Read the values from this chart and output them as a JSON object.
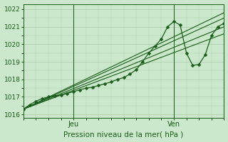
{
  "title": "Pression niveau de la mer( hPa )",
  "bg_color": "#cce8cc",
  "grid_color": "#aaccaa",
  "line_color": "#1a5c1a",
  "ylim": [
    1015.8,
    1022.3
  ],
  "yticks": [
    1016,
    1017,
    1018,
    1019,
    1020,
    1021,
    1022
  ],
  "xlim": [
    0,
    48
  ],
  "xtick_jeu": 12,
  "xtick_ven": 36,
  "straight_lines": [
    {
      "x": [
        0,
        48
      ],
      "y": [
        1016.3,
        1021.0
      ]
    },
    {
      "x": [
        0,
        48
      ],
      "y": [
        1016.3,
        1020.6
      ]
    },
    {
      "x": [
        0,
        48
      ],
      "y": [
        1016.3,
        1021.5
      ]
    },
    {
      "x": [
        0,
        48
      ],
      "y": [
        1016.3,
        1021.8
      ]
    }
  ],
  "wiggly": {
    "x": [
      0,
      1.5,
      3,
      4.5,
      6,
      7.5,
      9,
      10.5,
      12,
      13.5,
      15,
      16.5,
      18,
      19.5,
      21,
      22.5,
      24,
      25.5,
      27,
      28.5,
      30,
      31.5,
      33,
      34.5,
      36,
      37.5,
      39,
      40.5,
      42,
      43.5,
      45,
      46.5,
      48
    ],
    "y": [
      1016.3,
      1016.55,
      1016.75,
      1016.9,
      1017.0,
      1017.05,
      1017.1,
      1017.2,
      1017.3,
      1017.4,
      1017.5,
      1017.55,
      1017.65,
      1017.75,
      1017.85,
      1018.0,
      1018.1,
      1018.3,
      1018.55,
      1019.0,
      1019.5,
      1019.9,
      1020.3,
      1021.0,
      1021.3,
      1021.1,
      1019.5,
      1018.8,
      1018.85,
      1019.4,
      1020.5,
      1021.0,
      1021.2
    ],
    "marker": "D",
    "markersize": 2.5
  }
}
